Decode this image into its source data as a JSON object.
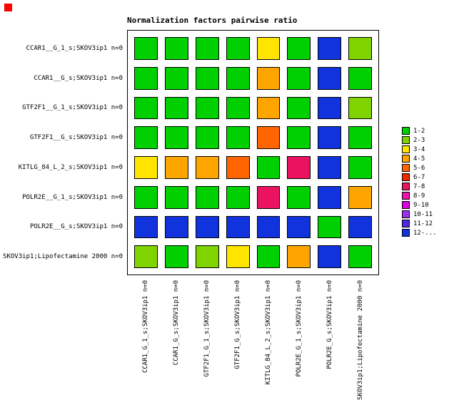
{
  "title": "Normalization factors pairwise ratio",
  "marker_color": "#ff0000",
  "chart_data": {
    "type": "heatmap",
    "title": "Normalization factors pairwise ratio",
    "rows": [
      "CCAR1__G_1_s;SKOV3ip1 n=0",
      "CCAR1__G_s;SKOV3ip1 n=0",
      "GTF2F1__G_1_s;SKOV3ip1 n=0",
      "GTF2F1__G_s;SKOV3ip1 n=0",
      "KITLG_84_L_2_s;SKOV3ip1 n=0",
      "POLR2E__G_1_s;SKOV3ip1 n=0",
      "POLR2E__G_s;SKOV3ip1 n=0",
      "SKOV3ip1;Lipofectamine 2000 n=0"
    ],
    "columns": [
      "CCAR1_G_1_s;SKOV3ip1 n=0",
      "CCAR1_G_s;SKOV3ip1 n=0",
      "GTF2F1_G_1_s;SKOV3ip1 n=0",
      "GTF2F1_G_s;SKOV3ip1 n=0",
      "KITLG_84_L_2_s;SKOV3ip1 n=0",
      "POLR2E_G_1_s;SKOV3ip1 n=0",
      "POLR2E_G_s;SKOV3ip1 n=0",
      "SKOV3ip1;Lipofectamine 2000 n=0"
    ],
    "values": [
      [
        "1-2",
        "1-2",
        "1-2",
        "1-2",
        "3-4",
        "1-2",
        "12-...",
        "2-3"
      ],
      [
        "1-2",
        "1-2",
        "1-2",
        "1-2",
        "4-5",
        "1-2",
        "12-...",
        "1-2"
      ],
      [
        "1-2",
        "1-2",
        "1-2",
        "1-2",
        "4-5",
        "1-2",
        "12-...",
        "2-3"
      ],
      [
        "1-2",
        "1-2",
        "1-2",
        "1-2",
        "5-6",
        "1-2",
        "12-...",
        "1-2"
      ],
      [
        "3-4",
        "4-5",
        "4-5",
        "5-6",
        "1-2",
        "7-8",
        "12-...",
        "1-2"
      ],
      [
        "1-2",
        "1-2",
        "1-2",
        "1-2",
        "7-8",
        "1-2",
        "12-...",
        "4-5"
      ],
      [
        "12-...",
        "12-...",
        "12-...",
        "12-...",
        "12-...",
        "12-...",
        "1-2",
        "12-..."
      ],
      [
        "2-3",
        "1-2",
        "2-3",
        "3-4",
        "1-2",
        "4-5",
        "12-...",
        "1-2"
      ]
    ],
    "legend_position": "right",
    "legend": [
      {
        "label": "1-2",
        "color": "#00cf00"
      },
      {
        "label": "2-3",
        "color": "#7fd400"
      },
      {
        "label": "3-4",
        "color": "#ffe400"
      },
      {
        "label": "4-5",
        "color": "#ffa500"
      },
      {
        "label": "5-6",
        "color": "#ff6500"
      },
      {
        "label": "6-7",
        "color": "#ee2b00"
      },
      {
        "label": "7-8",
        "color": "#eb1260"
      },
      {
        "label": "8-9",
        "color": "#ee14ac"
      },
      {
        "label": "9-10",
        "color": "#db00db"
      },
      {
        "label": "10-11",
        "color": "#9b30f0"
      },
      {
        "label": "11-12",
        "color": "#4a2be2"
      },
      {
        "label": "12-...",
        "color": "#1133dd"
      }
    ]
  }
}
